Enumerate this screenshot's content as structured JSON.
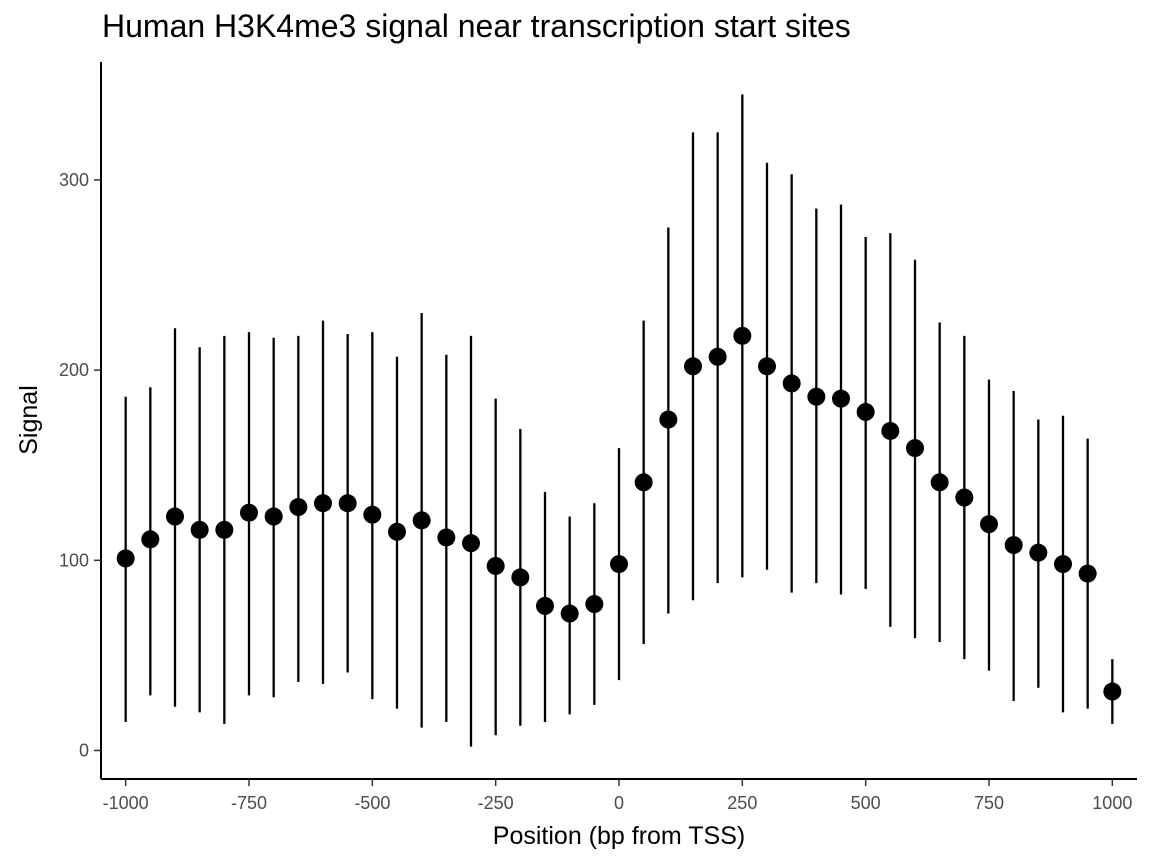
{
  "chart_data": {
    "type": "scatter",
    "title": "Human H3K4me3 signal near transcription start sites",
    "xlabel": "Position (bp from TSS)",
    "ylabel": "Signal",
    "xlim": [
      -1050,
      1050
    ],
    "ylim": [
      -15,
      362
    ],
    "x_ticks": [
      -1000,
      -750,
      -500,
      -250,
      0,
      250,
      500,
      750,
      1000
    ],
    "x_tick_labels": [
      "-1000",
      "-750",
      "-500",
      "-250",
      "0",
      "250",
      "500",
      "750",
      "1000"
    ],
    "y_ticks": [
      0,
      100,
      200,
      300
    ],
    "y_tick_labels": [
      "0",
      "100",
      "200",
      "300"
    ],
    "grid": false,
    "legend": "none",
    "point_color": "#000000",
    "points": [
      {
        "x": -1000,
        "y": 101,
        "lo": 15,
        "hi": 186
      },
      {
        "x": -950,
        "y": 111,
        "lo": 29,
        "hi": 191
      },
      {
        "x": -900,
        "y": 123,
        "lo": 23,
        "hi": 222
      },
      {
        "x": -850,
        "y": 116,
        "lo": 20,
        "hi": 212
      },
      {
        "x": -800,
        "y": 116,
        "lo": 14,
        "hi": 218
      },
      {
        "x": -750,
        "y": 125,
        "lo": 29,
        "hi": 220
      },
      {
        "x": -700,
        "y": 123,
        "lo": 28,
        "hi": 217
      },
      {
        "x": -650,
        "y": 128,
        "lo": 36,
        "hi": 218
      },
      {
        "x": -600,
        "y": 130,
        "lo": 35,
        "hi": 226
      },
      {
        "x": -550,
        "y": 130,
        "lo": 41,
        "hi": 219
      },
      {
        "x": -500,
        "y": 124,
        "lo": 27,
        "hi": 220
      },
      {
        "x": -450,
        "y": 115,
        "lo": 22,
        "hi": 207
      },
      {
        "x": -400,
        "y": 121,
        "lo": 12,
        "hi": 230
      },
      {
        "x": -350,
        "y": 112,
        "lo": 15,
        "hi": 208
      },
      {
        "x": -300,
        "y": 109,
        "lo": 2,
        "hi": 218
      },
      {
        "x": -250,
        "y": 97,
        "lo": 8,
        "hi": 185
      },
      {
        "x": -200,
        "y": 91,
        "lo": 13,
        "hi": 169
      },
      {
        "x": -150,
        "y": 76,
        "lo": 15,
        "hi": 136
      },
      {
        "x": -100,
        "y": 72,
        "lo": 19,
        "hi": 123
      },
      {
        "x": -50,
        "y": 77,
        "lo": 24,
        "hi": 130
      },
      {
        "x": 0,
        "y": 98,
        "lo": 37,
        "hi": 159
      },
      {
        "x": 50,
        "y": 141,
        "lo": 56,
        "hi": 226
      },
      {
        "x": 100,
        "y": 174,
        "lo": 72,
        "hi": 275
      },
      {
        "x": 150,
        "y": 202,
        "lo": 79,
        "hi": 325
      },
      {
        "x": 200,
        "y": 207,
        "lo": 88,
        "hi": 325
      },
      {
        "x": 250,
        "y": 218,
        "lo": 91,
        "hi": 345
      },
      {
        "x": 300,
        "y": 202,
        "lo": 95,
        "hi": 309
      },
      {
        "x": 350,
        "y": 193,
        "lo": 83,
        "hi": 303
      },
      {
        "x": 400,
        "y": 186,
        "lo": 88,
        "hi": 285
      },
      {
        "x": 450,
        "y": 185,
        "lo": 82,
        "hi": 287
      },
      {
        "x": 500,
        "y": 178,
        "lo": 85,
        "hi": 270
      },
      {
        "x": 550,
        "y": 168,
        "lo": 65,
        "hi": 272
      },
      {
        "x": 600,
        "y": 159,
        "lo": 59,
        "hi": 258
      },
      {
        "x": 650,
        "y": 141,
        "lo": 57,
        "hi": 225
      },
      {
        "x": 700,
        "y": 133,
        "lo": 48,
        "hi": 218
      },
      {
        "x": 750,
        "y": 119,
        "lo": 42,
        "hi": 195
      },
      {
        "x": 800,
        "y": 108,
        "lo": 26,
        "hi": 189
      },
      {
        "x": 850,
        "y": 104,
        "lo": 33,
        "hi": 174
      },
      {
        "x": 900,
        "y": 98,
        "lo": 20,
        "hi": 176
      },
      {
        "x": 950,
        "y": 93,
        "lo": 22,
        "hi": 164
      },
      {
        "x": 1000,
        "y": 31,
        "lo": 14,
        "hi": 48
      }
    ]
  }
}
